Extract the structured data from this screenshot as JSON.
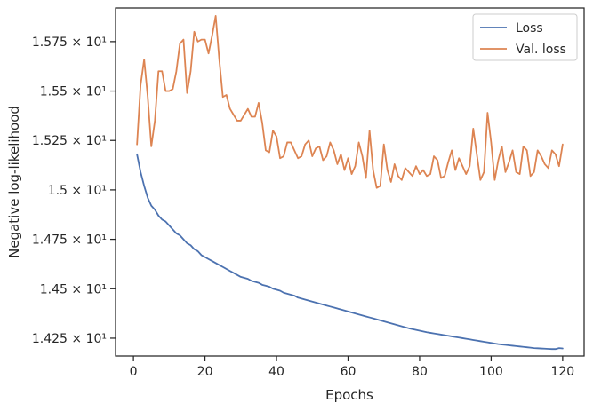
{
  "chart_data": {
    "type": "line",
    "title": "",
    "xlabel": "Epochs",
    "ylabel": "Negative log-likelihood",
    "xlim": [
      -5,
      126
    ],
    "ylim": [
      14.16,
      15.92
    ],
    "x_ticks": [
      0,
      20,
      40,
      60,
      80,
      100,
      120
    ],
    "x_tick_labels": [
      "0",
      "20",
      "40",
      "60",
      "80",
      "100",
      "120"
    ],
    "y_ticks": [
      14.25,
      14.5,
      14.75,
      15.0,
      15.25,
      15.5,
      15.75
    ],
    "y_tick_labels": [
      "1.425 × 10¹",
      "1.45 × 10¹",
      "1.475 × 10¹",
      "1.5 × 10¹",
      "1.525 × 10¹",
      "1.55 × 10¹",
      "1.575 × 10¹"
    ],
    "grid": false,
    "legend_position": "top-right",
    "series": [
      {
        "name": "Loss",
        "color": "#4c72b0",
        "x": [
          1,
          2,
          3,
          4,
          5,
          6,
          7,
          8,
          9,
          10,
          11,
          12,
          13,
          14,
          15,
          16,
          17,
          18,
          19,
          20,
          21,
          22,
          23,
          24,
          25,
          26,
          27,
          28,
          29,
          30,
          31,
          32,
          33,
          34,
          35,
          36,
          37,
          38,
          39,
          40,
          41,
          42,
          43,
          44,
          45,
          46,
          47,
          48,
          49,
          50,
          51,
          52,
          53,
          54,
          55,
          56,
          57,
          58,
          59,
          60,
          61,
          62,
          63,
          64,
          65,
          66,
          67,
          68,
          69,
          70,
          71,
          72,
          73,
          74,
          75,
          76,
          77,
          78,
          79,
          80,
          81,
          82,
          83,
          84,
          85,
          86,
          87,
          88,
          89,
          90,
          91,
          92,
          93,
          94,
          95,
          96,
          97,
          98,
          99,
          100,
          101,
          102,
          103,
          104,
          105,
          106,
          107,
          108,
          109,
          110,
          111,
          112,
          113,
          114,
          115,
          116,
          117,
          118,
          119,
          120
        ],
        "values": [
          15.18,
          15.09,
          15.02,
          14.96,
          14.92,
          14.9,
          14.87,
          14.85,
          14.84,
          14.82,
          14.8,
          14.78,
          14.77,
          14.75,
          14.73,
          14.72,
          14.7,
          14.69,
          14.67,
          14.66,
          14.65,
          14.64,
          14.63,
          14.62,
          14.61,
          14.6,
          14.59,
          14.58,
          14.57,
          14.56,
          14.555,
          14.55,
          14.54,
          14.535,
          14.53,
          14.52,
          14.515,
          14.51,
          14.5,
          14.495,
          14.49,
          14.48,
          14.475,
          14.47,
          14.465,
          14.455,
          14.45,
          14.445,
          14.44,
          14.435,
          14.43,
          14.425,
          14.42,
          14.415,
          14.41,
          14.405,
          14.4,
          14.395,
          14.39,
          14.385,
          14.38,
          14.375,
          14.37,
          14.365,
          14.36,
          14.355,
          14.35,
          14.345,
          14.34,
          14.335,
          14.33,
          14.325,
          14.32,
          14.315,
          14.31,
          14.305,
          14.3,
          14.296,
          14.292,
          14.288,
          14.284,
          14.28,
          14.277,
          14.274,
          14.271,
          14.268,
          14.265,
          14.262,
          14.259,
          14.256,
          14.253,
          14.25,
          14.247,
          14.244,
          14.241,
          14.238,
          14.235,
          14.232,
          14.229,
          14.226,
          14.223,
          14.22,
          14.218,
          14.216,
          14.214,
          14.212,
          14.21,
          14.208,
          14.206,
          14.204,
          14.202,
          14.2,
          14.199,
          14.198,
          14.197,
          14.196,
          14.195,
          14.195,
          14.2,
          14.198
        ]
      },
      {
        "name": "Val. loss",
        "color": "#dd8452",
        "x": [
          1,
          2,
          3,
          4,
          5,
          6,
          7,
          8,
          9,
          10,
          11,
          12,
          13,
          14,
          15,
          16,
          17,
          18,
          19,
          20,
          21,
          22,
          23,
          24,
          25,
          26,
          27,
          28,
          29,
          30,
          31,
          32,
          33,
          34,
          35,
          36,
          37,
          38,
          39,
          40,
          41,
          42,
          43,
          44,
          45,
          46,
          47,
          48,
          49,
          50,
          51,
          52,
          53,
          54,
          55,
          56,
          57,
          58,
          59,
          60,
          61,
          62,
          63,
          64,
          65,
          66,
          67,
          68,
          69,
          70,
          71,
          72,
          73,
          74,
          75,
          76,
          77,
          78,
          79,
          80,
          81,
          82,
          83,
          84,
          85,
          86,
          87,
          88,
          89,
          90,
          91,
          92,
          93,
          94,
          95,
          96,
          97,
          98,
          99,
          100,
          101,
          102,
          103,
          104,
          105,
          106,
          107,
          108,
          109,
          110,
          111,
          112,
          113,
          114,
          115,
          116,
          117,
          118,
          119,
          120
        ],
        "values": [
          15.23,
          15.53,
          15.66,
          15.47,
          15.22,
          15.35,
          15.6,
          15.6,
          15.5,
          15.5,
          15.51,
          15.6,
          15.74,
          15.76,
          15.49,
          15.6,
          15.8,
          15.75,
          15.76,
          15.76,
          15.69,
          15.78,
          15.88,
          15.66,
          15.47,
          15.48,
          15.41,
          15.38,
          15.35,
          15.35,
          15.38,
          15.41,
          15.37,
          15.37,
          15.44,
          15.34,
          15.2,
          15.19,
          15.3,
          15.27,
          15.16,
          15.17,
          15.24,
          15.24,
          15.2,
          15.16,
          15.17,
          15.23,
          15.25,
          15.17,
          15.21,
          15.22,
          15.15,
          15.17,
          15.24,
          15.2,
          15.13,
          15.18,
          15.1,
          15.16,
          15.08,
          15.12,
          15.24,
          15.17,
          15.06,
          15.3,
          15.1,
          15.01,
          15.02,
          15.23,
          15.1,
          15.04,
          15.13,
          15.07,
          15.05,
          15.11,
          15.09,
          15.07,
          15.12,
          15.08,
          15.1,
          15.07,
          15.08,
          15.17,
          15.15,
          15.06,
          15.07,
          15.14,
          15.2,
          15.1,
          15.16,
          15.12,
          15.08,
          15.12,
          15.31,
          15.18,
          15.05,
          15.09,
          15.39,
          15.24,
          15.05,
          15.15,
          15.22,
          15.09,
          15.14,
          15.2,
          15.09,
          15.08,
          15.22,
          15.2,
          15.07,
          15.09,
          15.2,
          15.17,
          15.13,
          15.11,
          15.2,
          15.18,
          15.12,
          15.23
        ]
      }
    ]
  }
}
